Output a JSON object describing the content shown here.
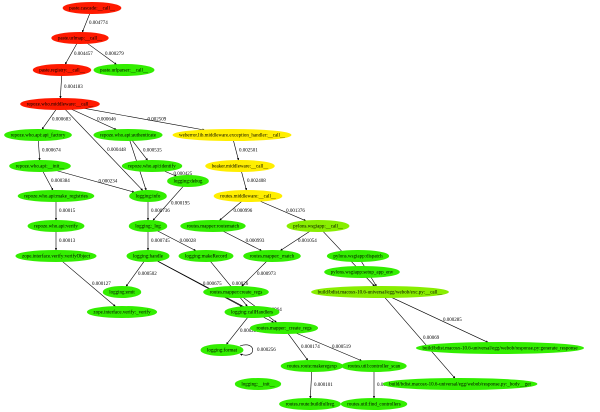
{
  "nodes": [
    {
      "label": "paste.cascade:__call__"
    },
    {
      "label": "paste.urlmap:__call__"
    },
    {
      "label": "paste.registry:__call__"
    },
    {
      "label": "paste.urlparser:__call__"
    },
    {
      "label": "repoze.who.middleware:__call__"
    },
    {
      "label": "repoze.who.api:api_factory"
    },
    {
      "label": "repoze.who.api:authenticate"
    },
    {
      "label": "weberror.lib.middleware.exception_handler:__call__"
    },
    {
      "label": "repoze.who.api:__init__"
    },
    {
      "label": "repoze.who.api:identify"
    },
    {
      "label": "beaker.middleware:__call__"
    },
    {
      "label": "repoze.who.api:make_registries"
    },
    {
      "label": "logging:info"
    },
    {
      "label": "logging:debug"
    },
    {
      "label": "routes.middleware:__call__"
    },
    {
      "label": "repoze.who.api:verify"
    },
    {
      "label": "logging:_log"
    },
    {
      "label": "routes.mapper:routematch"
    },
    {
      "label": "pylons.wsgiapp:__call__"
    },
    {
      "label": "zope.interface.verify:verifyObject"
    },
    {
      "label": "logging:handle"
    },
    {
      "label": "logging:makeRecord"
    },
    {
      "label": "routes.mapper:_match"
    },
    {
      "label": "pylons.wsgiapp:dispatch"
    },
    {
      "label": "pylons.wsgiapp:setup_app_env"
    },
    {
      "label": "routes.mapper:create_regs"
    },
    {
      "label": "build/bdist.macosx-10.6-universal/egg/webob/exc.py:__call__"
    },
    {
      "label": "logging:emit"
    },
    {
      "label": "zope.interface.verify:_verify"
    },
    {
      "label": "logging:callHandlers"
    },
    {
      "label": "routes.mapper:_create_regs"
    },
    {
      "label": "build/bdist.macosx-10.6-universal/egg/webob/response.py:generate_response"
    },
    {
      "label": "logging:format"
    },
    {
      "label": "routes.route:makeregexp"
    },
    {
      "label": "routes.util:controller_scan"
    },
    {
      "label": "build/bdist.macosx-10.6-universal/egg/webob/response.py:_body__get"
    },
    {
      "label": "logging:__init__"
    },
    {
      "label": "routes.route:buildfullreg"
    },
    {
      "label": "routes.util:find_controllers"
    }
  ],
  "edges": [
    {
      "label": "0.004774"
    },
    {
      "label": "0.004457"
    },
    {
      "label": "0.000279"
    },
    {
      "label": "0.004183"
    },
    {
      "label": "0.000683"
    },
    {
      "label": "0.000646"
    },
    {
      "label": "0.002509"
    },
    {
      "label": "0.000674"
    },
    {
      "label": "0.000448"
    },
    {
      "label": "0.000535"
    },
    {
      "label": "0.000104"
    },
    {
      "label": "0.000384"
    },
    {
      "label": "0.000234"
    },
    {
      "label": "0.000425"
    },
    {
      "label": "0.002501"
    },
    {
      "label": "0.002408"
    },
    {
      "label": "0.00015"
    },
    {
      "label": "0.000736"
    },
    {
      "label": "0.000195"
    },
    {
      "label": "0.000996"
    },
    {
      "label": "0.001376"
    },
    {
      "label": "0.00013"
    },
    {
      "label": "0.000745"
    },
    {
      "label": "0.00028"
    },
    {
      "label": "0.000993"
    },
    {
      "label": "0.001054"
    },
    {
      "label": "0.000973"
    },
    {
      "label": "0.000291"
    },
    {
      "label": "0.000992"
    },
    {
      "label": "0.000127"
    },
    {
      "label": "0.000502"
    },
    {
      "label": "0.000675"
    },
    {
      "label": "0.00072"
    },
    {
      "label": "0.000286"
    },
    {
      "label": "0.000256"
    },
    {
      "label": "0.00026"
    },
    {
      "label": "0.000964"
    },
    {
      "label": "0.000285"
    },
    {
      "label": "0.00069"
    },
    {
      "label": "0.000174"
    },
    {
      "label": "0.000519"
    },
    {
      "label": "0.000101"
    },
    {
      "label": "0.000494"
    }
  ]
}
